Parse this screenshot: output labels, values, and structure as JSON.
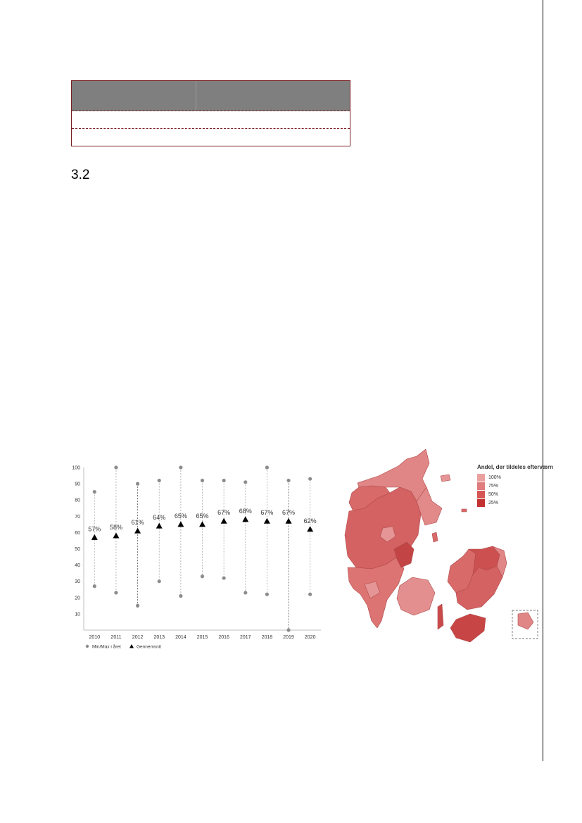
{
  "section": {
    "number": "3.2"
  },
  "chart_data": {
    "type": "scatter",
    "title": "",
    "xlabel": "",
    "ylabel": "",
    "ylim": [
      0,
      100
    ],
    "y_ticks": [
      10,
      20,
      30,
      40,
      50,
      60,
      70,
      80,
      90,
      100
    ],
    "categories": [
      "2010",
      "2011",
      "2012",
      "2013",
      "2014",
      "2015",
      "2016",
      "2017",
      "2018",
      "2019",
      "2020"
    ],
    "series": [
      {
        "name": "Min/Max i året",
        "marker": "circle",
        "color": "#8c8c8c",
        "min": [
          27,
          23,
          15,
          30,
          21,
          33,
          32,
          23,
          22,
          0,
          22
        ],
        "max": [
          85,
          100,
          90,
          92,
          100,
          92,
          92,
          91,
          100,
          92,
          93
        ]
      },
      {
        "name": "Gennemsnit",
        "marker": "triangle",
        "color": "#000000",
        "values": [
          57,
          58,
          61,
          64,
          65,
          65,
          67,
          68,
          67,
          67,
          62
        ],
        "labels": [
          "57%",
          "58%",
          "61%",
          "64%",
          "65%",
          "65%",
          "67%",
          "68%",
          "67%",
          "67%",
          "62%"
        ]
      }
    ],
    "grid": false,
    "legend": "bottom-left"
  },
  "map": {
    "legend_title": "Andel, der tildeles efterværn",
    "legend": [
      {
        "label": "100%",
        "color": "#eba0a0"
      },
      {
        "label": "75%",
        "color": "#e07c7c"
      },
      {
        "label": "50%",
        "color": "#d55555"
      },
      {
        "label": "25%",
        "color": "#c33131"
      }
    ],
    "colors": {
      "base": "#d86a6a",
      "light": "#e59595",
      "dark": "#c54040",
      "border": "#777777"
    }
  }
}
